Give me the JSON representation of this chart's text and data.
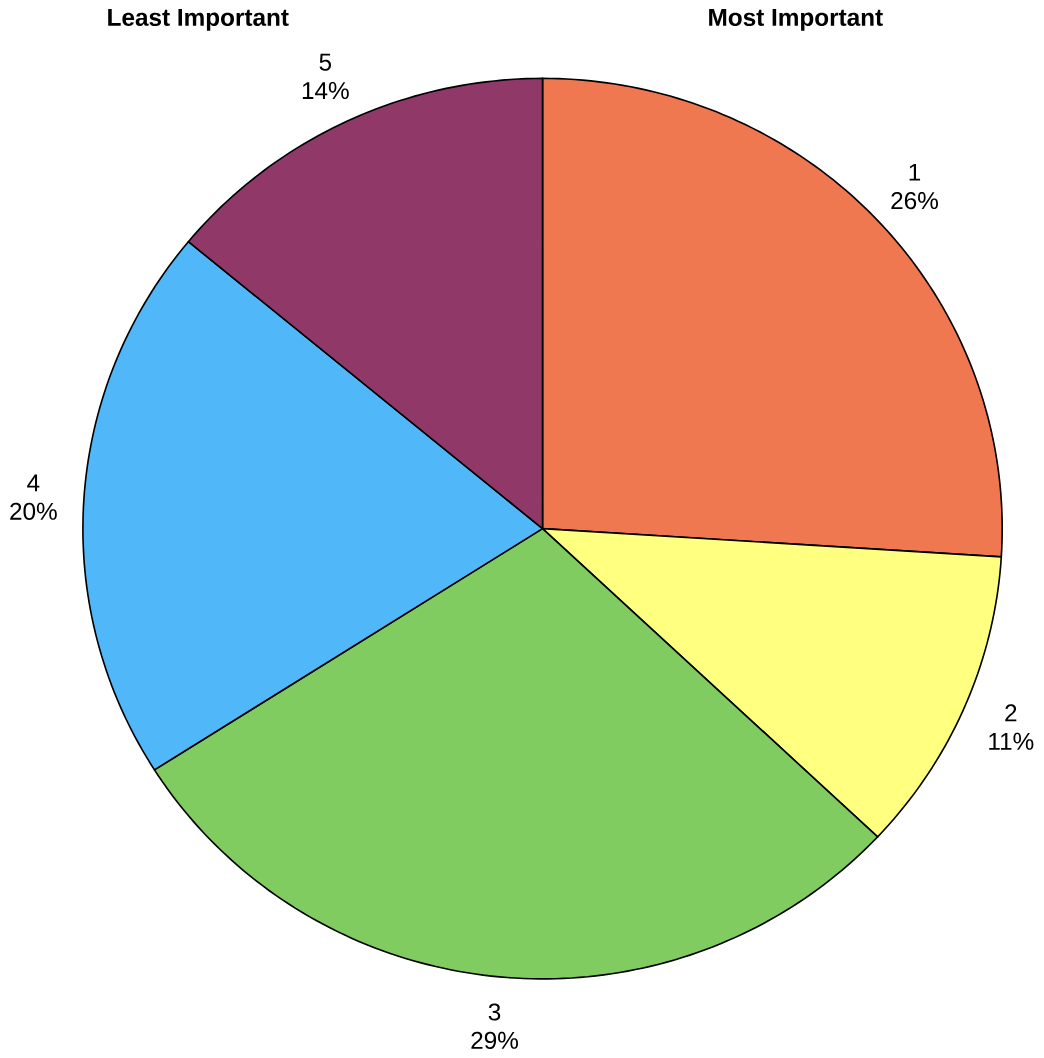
{
  "chart_data": {
    "type": "pie",
    "categories": [
      "1",
      "2",
      "3",
      "4",
      "5"
    ],
    "values": [
      26,
      11,
      29,
      20,
      14
    ],
    "value_labels": [
      "26%",
      "11%",
      "29%",
      "20%",
      "14%"
    ],
    "colors": [
      "#f07850",
      "#ffff80",
      "#80cc60",
      "#50b8f8",
      "#903868"
    ],
    "annotations": [
      "Most Important",
      "Least Important"
    ]
  }
}
